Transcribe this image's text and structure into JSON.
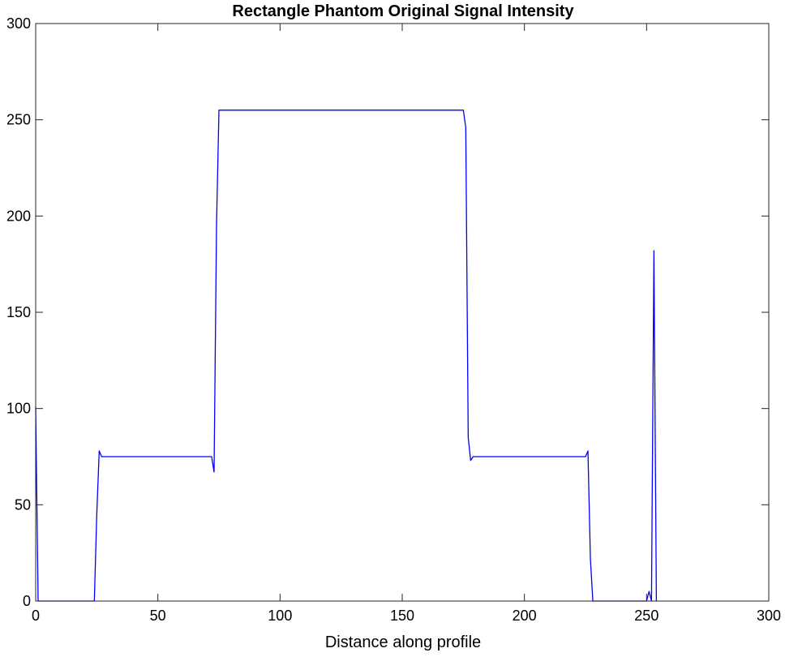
{
  "chart_data": {
    "type": "line",
    "title": "Rectangle Phantom Original Signal Intensity",
    "xlabel": "Distance along profile",
    "ylabel": "",
    "xlim": [
      0,
      300
    ],
    "ylim": [
      0,
      300
    ],
    "x_ticks": [
      0,
      50,
      100,
      150,
      200,
      250,
      300
    ],
    "y_ticks": [
      0,
      50,
      100,
      150,
      200,
      250,
      300
    ],
    "x_tick_labels": [
      "0",
      "50",
      "100",
      "150",
      "200",
      "250",
      "300"
    ],
    "y_tick_labels": [
      "0",
      "50",
      "100",
      "150",
      "200",
      "250",
      "300"
    ],
    "grid": false,
    "line_color": "#0000ff",
    "series": [
      {
        "x": [
          0,
          1,
          2,
          24,
          25,
          26,
          27,
          72,
          73,
          74,
          75,
          175,
          176,
          177,
          178,
          179,
          225,
          226,
          227,
          228,
          250,
          251,
          252,
          253,
          254
        ],
        "y": [
          101,
          0,
          0,
          0,
          45,
          78,
          75,
          75,
          67,
          195,
          255,
          255,
          246,
          85,
          73,
          75,
          75,
          78,
          22,
          0,
          0,
          5,
          0,
          182,
          0
        ]
      }
    ]
  }
}
